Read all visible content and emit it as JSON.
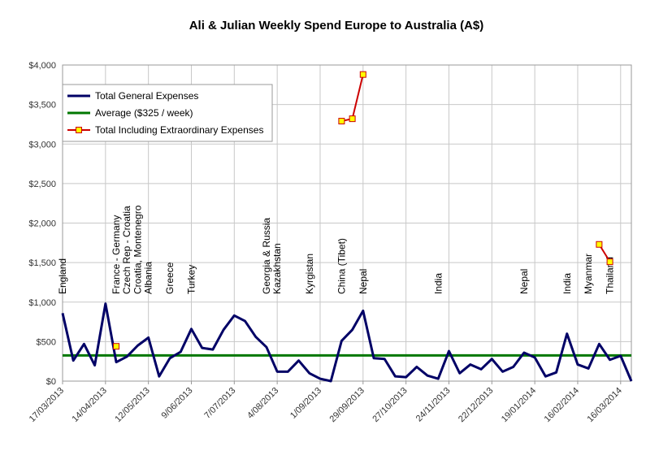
{
  "chart_data": {
    "type": "line",
    "title": "Ali & Julian Weekly Spend Europe to Australia (A$)",
    "xlabel": "",
    "ylabel": "",
    "ylim": [
      0,
      4000
    ],
    "yticks": [
      0,
      500,
      1000,
      1500,
      2000,
      2500,
      3000,
      3500,
      4000
    ],
    "ytick_labels": [
      "$0",
      "$500",
      "$1,000",
      "$1,500",
      "$2,000",
      "$2,500",
      "$3,000",
      "$3,500",
      "$4,000"
    ],
    "x_tick_labels": [
      {
        "week": 0,
        "label": "17/03/2013"
      },
      {
        "week": 4,
        "label": "14/04/2013"
      },
      {
        "week": 8,
        "label": "12/05/2013"
      },
      {
        "week": 12,
        "label": "9/06/2013"
      },
      {
        "week": 16,
        "label": "7/07/2013"
      },
      {
        "week": 20,
        "label": "4/08/2013"
      },
      {
        "week": 24,
        "label": "1/09/2013"
      },
      {
        "week": 28,
        "label": "29/09/2013"
      },
      {
        "week": 32,
        "label": "27/10/2013"
      },
      {
        "week": 36,
        "label": "24/11/2013"
      },
      {
        "week": 40,
        "label": "22/12/2013"
      },
      {
        "week": 44,
        "label": "19/01/2014"
      },
      {
        "week": 48,
        "label": "16/02/2014"
      },
      {
        "week": 52,
        "label": "16/03/2014"
      }
    ],
    "grid": true,
    "legend_position": "top-left",
    "series": [
      {
        "name": "Total General Expenses",
        "color": "#000066",
        "values": [
          860,
          260,
          470,
          200,
          980,
          240,
          310,
          450,
          550,
          60,
          290,
          370,
          660,
          420,
          400,
          650,
          830,
          760,
          560,
          430,
          120,
          120,
          260,
          100,
          30,
          0,
          510,
          650,
          890,
          290,
          280,
          60,
          50,
          180,
          70,
          30,
          380,
          100,
          210,
          150,
          280,
          120,
          180,
          360,
          300,
          60,
          110,
          600,
          210,
          160,
          470,
          270,
          320,
          0
        ]
      },
      {
        "name": "Average ($325 / week)",
        "color": "#007700",
        "values": [
          325,
          325,
          325,
          325,
          325,
          325,
          325,
          325,
          325,
          325,
          325,
          325,
          325,
          325,
          325,
          325,
          325,
          325,
          325,
          325,
          325,
          325,
          325,
          325,
          325,
          325,
          325,
          325,
          325,
          325,
          325,
          325,
          325,
          325,
          325,
          325,
          325,
          325,
          325,
          325,
          325,
          325,
          325,
          325,
          325,
          325,
          325,
          325,
          325,
          325,
          325,
          325,
          325,
          325
        ]
      },
      {
        "name": "Total Including Extraordinary Expenses",
        "color": "#cc0000",
        "marker_fill": "#ffff00",
        "points": [
          [
            5,
            440
          ],
          [
            26,
            3290
          ],
          [
            27,
            3320
          ],
          [
            28,
            3880
          ],
          [
            50,
            1730
          ],
          [
            51,
            1510
          ]
        ]
      }
    ],
    "annotations": [
      {
        "week": 0,
        "text": "England"
      },
      {
        "week": 5,
        "text": "France - Germany"
      },
      {
        "week": 6,
        "text": "Czech Rep - Croatia"
      },
      {
        "week": 7,
        "text": "Croatia, Montenegro"
      },
      {
        "week": 8,
        "text": "Albania"
      },
      {
        "week": 10,
        "text": "Greece"
      },
      {
        "week": 12,
        "text": "Turkey"
      },
      {
        "week": 19,
        "text": "Georgia & Russia"
      },
      {
        "week": 20,
        "text": "Kazakhstan"
      },
      {
        "week": 23,
        "text": "Kyrgistan"
      },
      {
        "week": 26,
        "text": "China (Tibet)"
      },
      {
        "week": 28,
        "text": "Nepal"
      },
      {
        "week": 35,
        "text": "India"
      },
      {
        "week": 43,
        "text": "Nepal"
      },
      {
        "week": 47,
        "text": "India"
      },
      {
        "week": 49,
        "text": "Myanmar"
      },
      {
        "week": 51,
        "text": "Thailand"
      }
    ]
  }
}
